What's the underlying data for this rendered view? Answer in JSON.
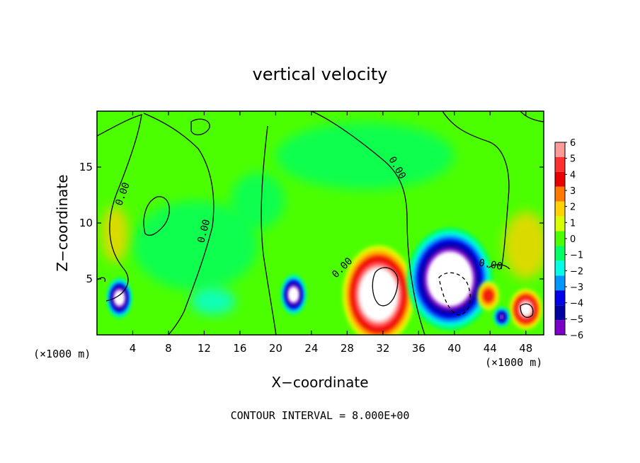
{
  "chart_data": {
    "type": "heatmap",
    "title": "vertical velocity",
    "xlabel": "X−coordinate",
    "ylabel": "Z−coordinate",
    "x_unit_label_left": "(×1000 m)",
    "x_unit_label_right": "(×1000 m)",
    "xlim": [
      0,
      50
    ],
    "ylim": [
      0,
      20
    ],
    "x_ticks": [
      4,
      8,
      12,
      16,
      20,
      24,
      28,
      32,
      36,
      40,
      44,
      48
    ],
    "y_ticks": [
      5,
      10,
      15
    ],
    "colorbar": {
      "levels": [
        6,
        5,
        4,
        3,
        2,
        1,
        0,
        -1,
        -2,
        -3,
        -4,
        -5,
        -6
      ],
      "labels": [
        "6",
        "5",
        "4",
        "3",
        "2",
        "1",
        "0",
        "−1",
        "−2",
        "−3",
        "−4",
        "−5",
        "−6"
      ],
      "colors": [
        "#ff9a9a",
        "#ff3030",
        "#e80000",
        "#ff7a00",
        "#ffd200",
        "#d8ff00",
        "#4cff00",
        "#00ff64",
        "#00ffe6",
        "#0096ff",
        "#0000e8",
        "#0000a0",
        "#7a00c8"
      ],
      "out_of_range_color": "#ffffff"
    },
    "contour_label": "0.00",
    "contour_interval_label": "CONTOUR INTERVAL = 8.000E+00",
    "features": [
      {
        "kind": "updraft",
        "x": 31.5,
        "z": 3.6,
        "peak": 12
      },
      {
        "kind": "downdraft",
        "x": 39.5,
        "z": 5.0,
        "peak": -12
      },
      {
        "kind": "downdraft",
        "x": 2.5,
        "z": 3.3,
        "peak": -9
      },
      {
        "kind": "downdraft",
        "x": 22.0,
        "z": 3.6,
        "peak": -9
      },
      {
        "kind": "updraft",
        "x": 48.0,
        "z": 2.3,
        "peak": 8
      },
      {
        "kind": "updraft",
        "x": 43.8,
        "z": 3.5,
        "peak": 4
      },
      {
        "kind": "downdraft",
        "x": 45.3,
        "z": 1.6,
        "peak": -6
      }
    ]
  }
}
